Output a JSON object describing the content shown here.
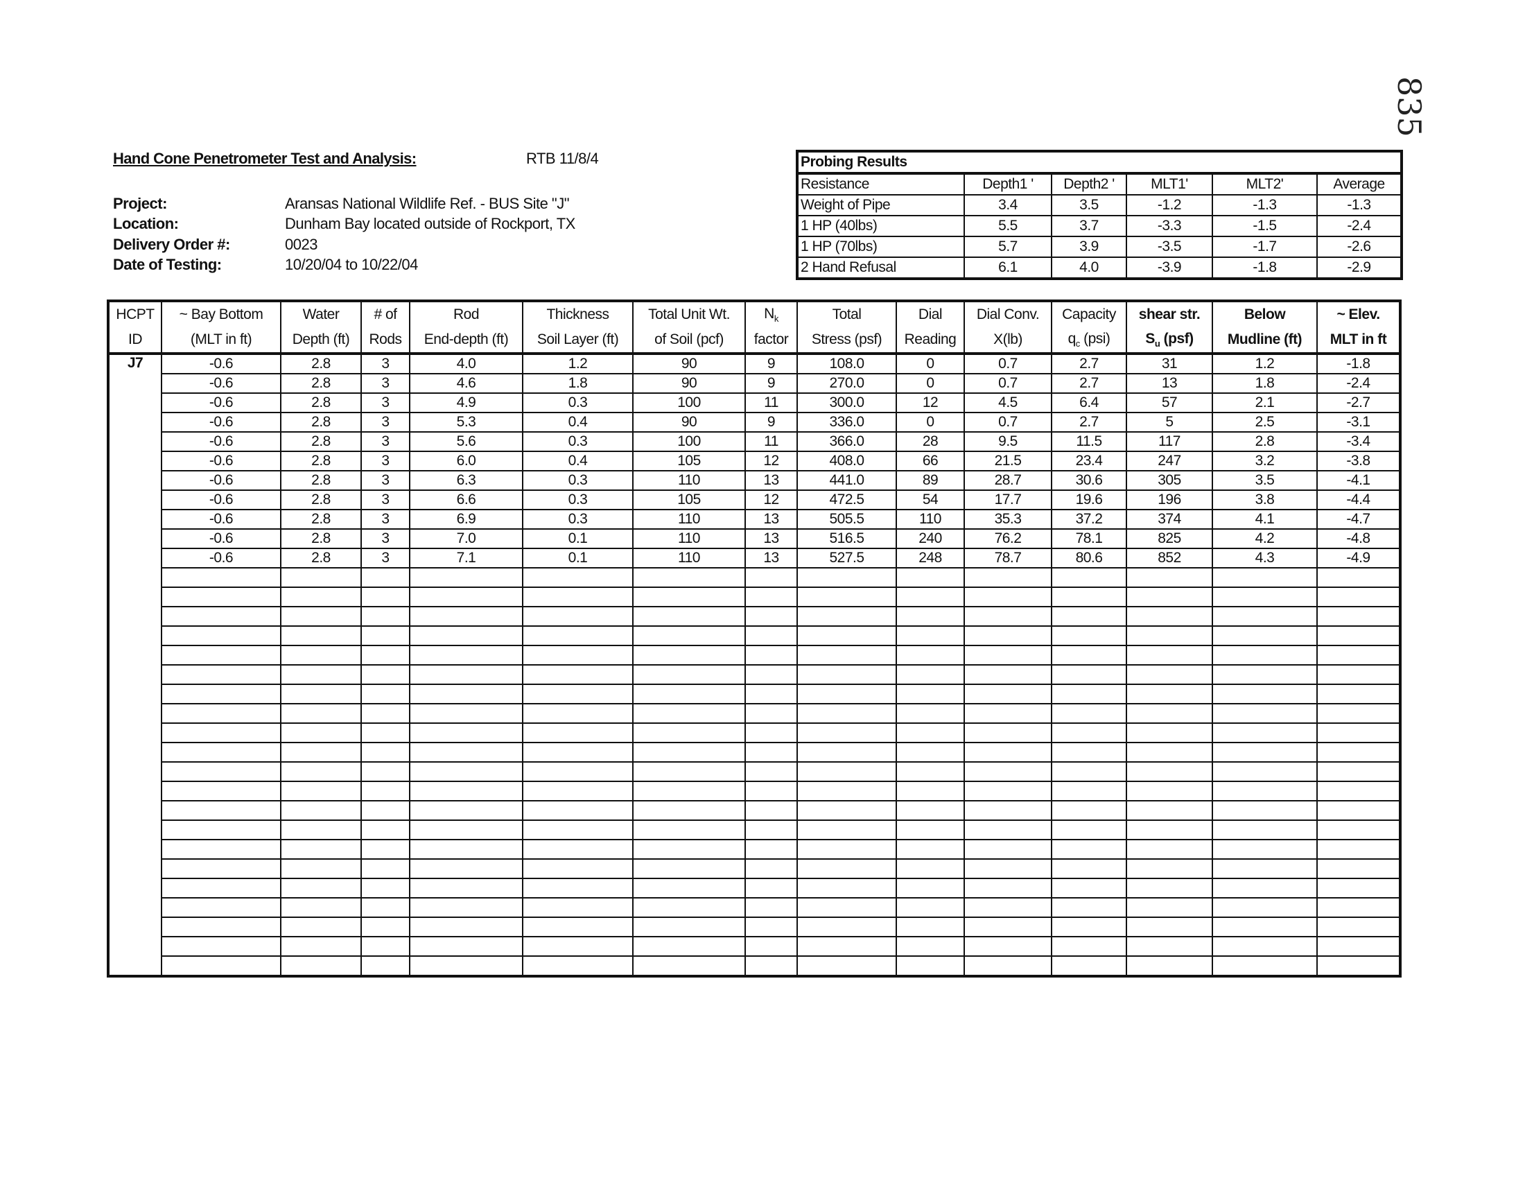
{
  "header": {
    "title": "Hand Cone Penetrometer Test and Analysis:",
    "initials": "RTB 11/8/4",
    "handwritten_page_number": "835",
    "fields": [
      {
        "label": "Project:",
        "value": "Aransas National Wildlife Ref. - BUS Site \"J\""
      },
      {
        "label": "Location:",
        "value": "Dunham Bay located outside of Rockport, TX"
      },
      {
        "label": "Delivery Order #:",
        "value": "0023"
      },
      {
        "label": "Date of Testing:",
        "value": "10/20/04 to 10/22/04"
      }
    ]
  },
  "probing": {
    "title": "Probing Results",
    "columns": [
      "Resistance",
      "Depth1 '",
      "Depth2 '",
      "MLT1'",
      "MLT2'",
      "Average"
    ],
    "rows": [
      [
        "Weight of Pipe",
        "3.4",
        "3.5",
        "-1.2",
        "-1.3",
        "-1.3"
      ],
      [
        "1 HP (40lbs)",
        "5.5",
        "3.7",
        "-3.3",
        "-1.5",
        "-2.4"
      ],
      [
        "1 HP (70lbs)",
        "5.7",
        "3.9",
        "-3.5",
        "-1.7",
        "-2.6"
      ],
      [
        "2 Hand Refusal",
        "6.1",
        "4.0",
        "-3.9",
        "-1.8",
        "-2.9"
      ]
    ]
  },
  "main_table": {
    "header_line1": [
      "HCPT",
      "~ Bay Bottom",
      "Water",
      "# of",
      "Rod",
      "Thickness",
      "Total Unit Wt.",
      "N",
      "Total",
      "Dial",
      "Dial Conv.",
      "Capacity",
      "shear str.",
      "Below",
      "~ Elev."
    ],
    "header_line1_sub": [
      "",
      "",
      "",
      "",
      "",
      "",
      "",
      "k",
      "",
      "",
      "",
      "",
      "",
      "",
      ""
    ],
    "header_line2": [
      "ID",
      "(MLT in ft)",
      "Depth (ft)",
      "Rods",
      "End-depth (ft)",
      "Soil Layer (ft)",
      "of Soil (pcf)",
      "factor",
      "Stress (psf)",
      "Reading",
      "X(lb)",
      "q",
      "S",
      "Mudline (ft)",
      "MLT in ft"
    ],
    "header_line2_sub": [
      "",
      "",
      "",
      "",
      "",
      "",
      "",
      "",
      "",
      "",
      "",
      "c",
      "u",
      "",
      ""
    ],
    "header_line2_suffix": [
      "",
      "",
      "",
      "",
      "",
      "",
      "",
      "",
      "",
      "",
      "",
      " (psi)",
      " (psf)",
      "",
      ""
    ],
    "bold_columns": [
      12,
      13,
      14
    ],
    "hcpt_id": "J7",
    "rows": [
      [
        "-0.6",
        "2.8",
        "3",
        "4.0",
        "1.2",
        "90",
        "9",
        "108.0",
        "0",
        "0.7",
        "2.7",
        "31",
        "1.2",
        "-1.8"
      ],
      [
        "-0.6",
        "2.8",
        "3",
        "4.6",
        "1.8",
        "90",
        "9",
        "270.0",
        "0",
        "0.7",
        "2.7",
        "13",
        "1.8",
        "-2.4"
      ],
      [
        "-0.6",
        "2.8",
        "3",
        "4.9",
        "0.3",
        "100",
        "11",
        "300.0",
        "12",
        "4.5",
        "6.4",
        "57",
        "2.1",
        "-2.7"
      ],
      [
        "-0.6",
        "2.8",
        "3",
        "5.3",
        "0.4",
        "90",
        "9",
        "336.0",
        "0",
        "0.7",
        "2.7",
        "5",
        "2.5",
        "-3.1"
      ],
      [
        "-0.6",
        "2.8",
        "3",
        "5.6",
        "0.3",
        "100",
        "11",
        "366.0",
        "28",
        "9.5",
        "11.5",
        "117",
        "2.8",
        "-3.4"
      ],
      [
        "-0.6",
        "2.8",
        "3",
        "6.0",
        "0.4",
        "105",
        "12",
        "408.0",
        "66",
        "21.5",
        "23.4",
        "247",
        "3.2",
        "-3.8"
      ],
      [
        "-0.6",
        "2.8",
        "3",
        "6.3",
        "0.3",
        "110",
        "13",
        "441.0",
        "89",
        "28.7",
        "30.6",
        "305",
        "3.5",
        "-4.1"
      ],
      [
        "-0.6",
        "2.8",
        "3",
        "6.6",
        "0.3",
        "105",
        "12",
        "472.5",
        "54",
        "17.7",
        "19.6",
        "196",
        "3.8",
        "-4.4"
      ],
      [
        "-0.6",
        "2.8",
        "3",
        "6.9",
        "0.3",
        "110",
        "13",
        "505.5",
        "110",
        "35.3",
        "37.2",
        "374",
        "4.1",
        "-4.7"
      ],
      [
        "-0.6",
        "2.8",
        "3",
        "7.0",
        "0.1",
        "110",
        "13",
        "516.5",
        "240",
        "76.2",
        "78.1",
        "825",
        "4.2",
        "-4.8"
      ],
      [
        "-0.6",
        "2.8",
        "3",
        "7.1",
        "0.1",
        "110",
        "13",
        "527.5",
        "248",
        "78.7",
        "80.6",
        "852",
        "4.3",
        "-4.9"
      ]
    ]
  }
}
